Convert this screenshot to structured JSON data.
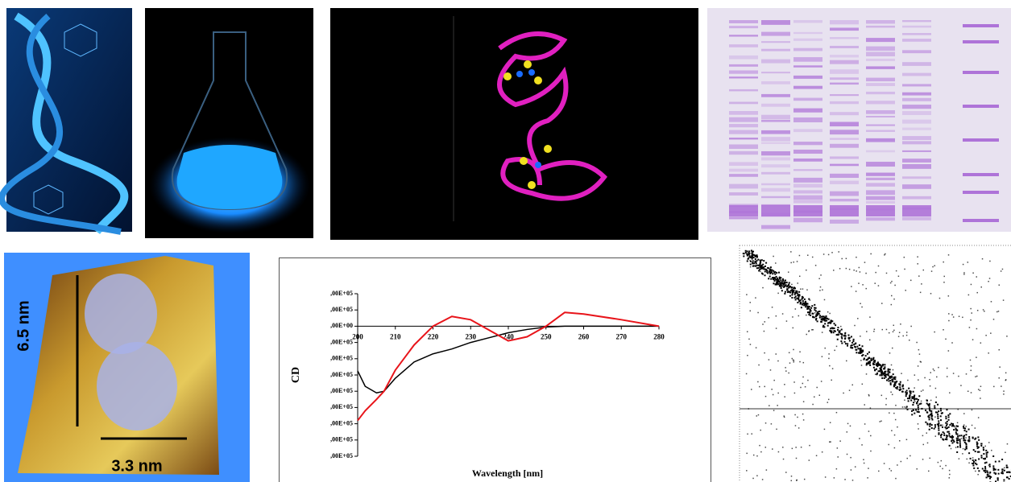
{
  "chart_data": {
    "type": "line",
    "xlabel": "Wavelength  [nm]",
    "ylabel": "CD",
    "x": [
      200,
      202,
      205,
      207,
      210,
      215,
      220,
      225,
      230,
      235,
      240,
      245,
      250,
      255,
      260,
      270,
      280
    ],
    "series": [
      {
        "color": "#000000",
        "values": [
          -275000,
          -370000,
          -410000,
          -400000,
          -320000,
          -220000,
          -170000,
          -140000,
          -100000,
          -70000,
          -40000,
          -20000,
          -5000,
          0,
          0,
          0,
          0
        ]
      },
      {
        "color": "#e8141a",
        "values": [
          -580000,
          -520000,
          -450000,
          -400000,
          -270000,
          -115000,
          0,
          60000,
          40000,
          -25000,
          -90000,
          -65000,
          0,
          85000,
          75000,
          40000,
          0
        ]
      }
    ],
    "xlim": [
      200,
      280
    ],
    "xticks": [
      200,
      210,
      220,
      230,
      240,
      250,
      260,
      270,
      280
    ],
    "ylim": [
      -800000,
      200000
    ],
    "yticks": [
      {
        "value": 200000,
        "label": ",00E+05"
      },
      {
        "value": 100000,
        "label": ",00E+05"
      },
      {
        "value": 0,
        "label": ",00E+00"
      },
      {
        "value": -100000,
        "label": ",00E+05"
      },
      {
        "value": -200000,
        "label": ",00E+05"
      },
      {
        "value": -300000,
        "label": ",00E+05"
      },
      {
        "value": -400000,
        "label": ",00E+05"
      },
      {
        "value": -500000,
        "label": ",00E+05"
      },
      {
        "value": -600000,
        "label": ",00E+05"
      },
      {
        "value": -700000,
        "label": ",00E+05"
      },
      {
        "value": -800000,
        "label": ",00E+05"
      }
    ]
  },
  "afm": {
    "height_label": "6.5 nm",
    "width_label": "3.3 nm"
  }
}
